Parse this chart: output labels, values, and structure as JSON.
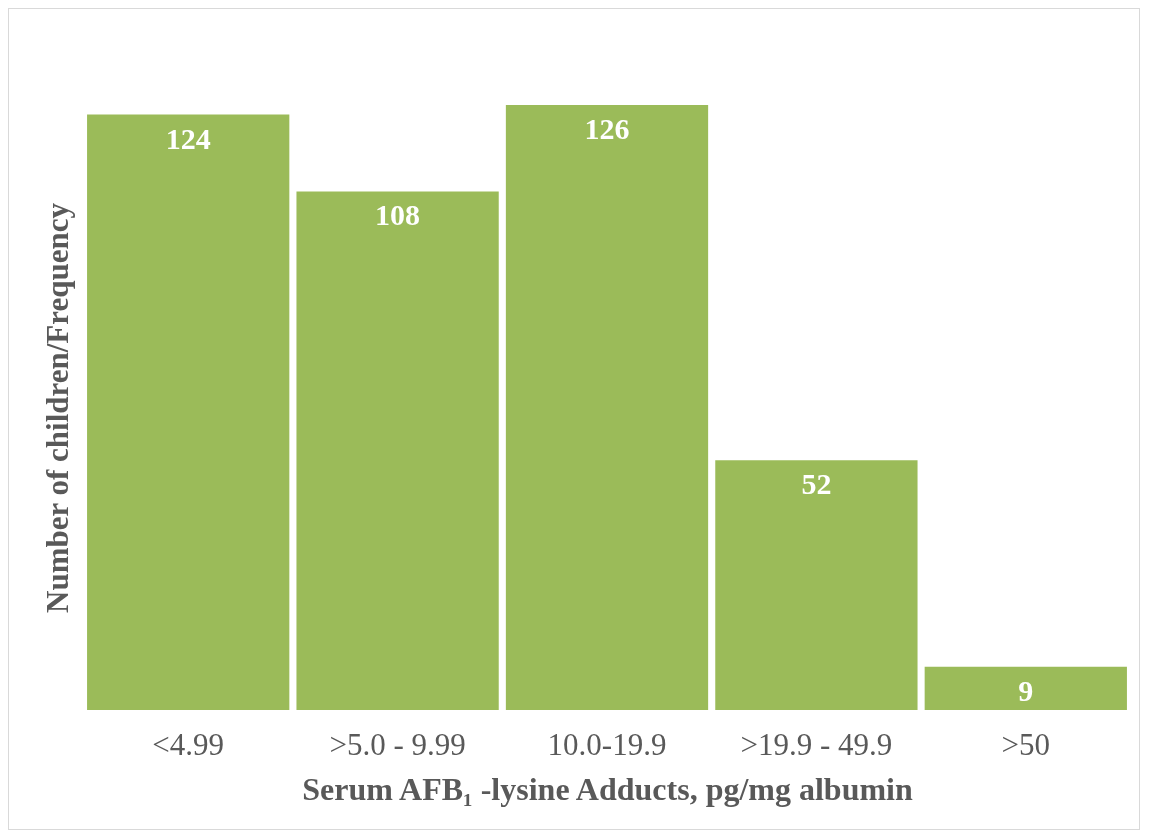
{
  "chart_data": {
    "type": "bar",
    "xlabel": "Serum AFB₁ -lysine Adducts, pg/mg albumin",
    "ylabel": "Number of children/Frequency",
    "categories": [
      "<4.99",
      ">5.0 - 9.99",
      "10.0-19.9",
      ">19.9 - 49.9",
      ">50"
    ],
    "values": [
      124,
      108,
      126,
      52,
      9
    ],
    "color": "#9bbb59",
    "data_labels": true
  }
}
